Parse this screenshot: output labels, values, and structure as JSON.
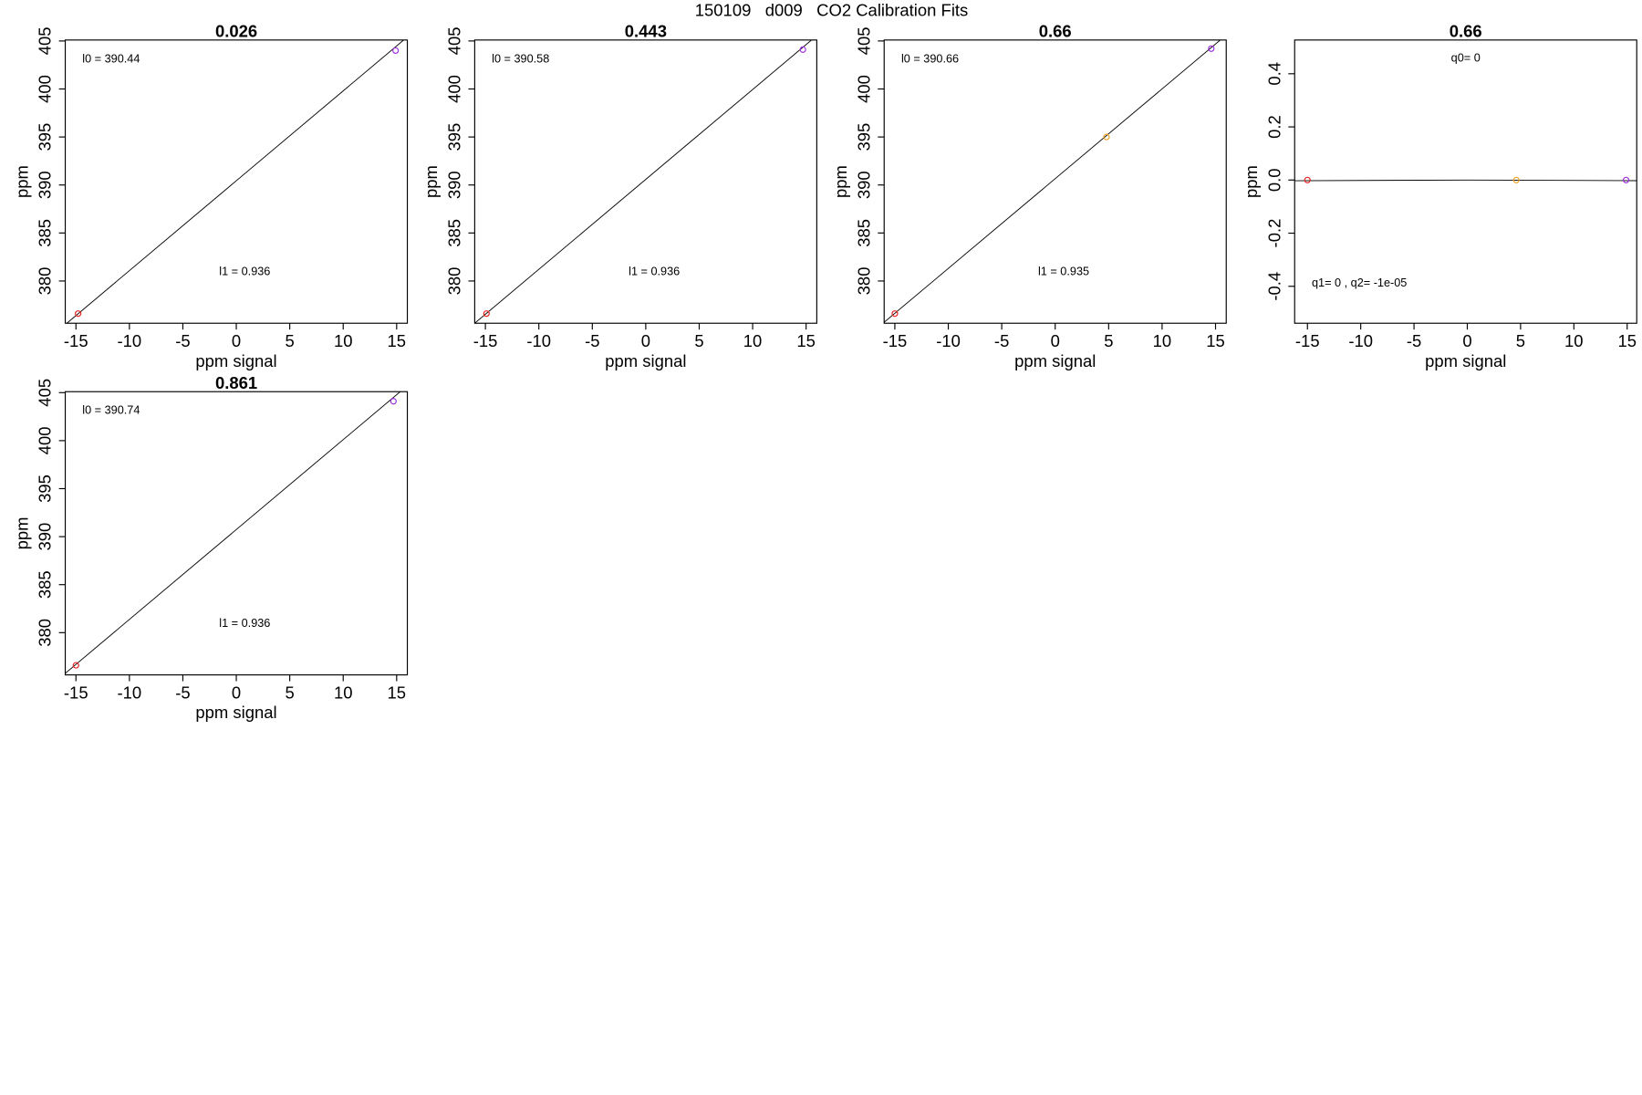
{
  "title": "150109   d009   CO2 Calibration Fits",
  "chart_data": [
    {
      "type": "scatter",
      "title": "0.026",
      "x_label": "ppm signal",
      "y_label": "ppm",
      "xlim": [
        -16,
        16
      ],
      "ylim": [
        375.6,
        405.1
      ],
      "xticks": [
        -15,
        -10,
        -5,
        0,
        5,
        10,
        15
      ],
      "yticks": [
        380,
        385,
        390,
        395,
        400,
        405
      ],
      "x": [
        -14.8,
        14.9
      ],
      "values": [
        376.6,
        404.0
      ],
      "colors": [
        "#e8201c",
        "#9a2ae0"
      ],
      "fit_line": {
        "x": [
          -16,
          16
        ],
        "values": [
          375.46,
          405.42
        ]
      },
      "annotations": [
        "l0 =  390.44",
        "l1 =  0.936"
      ]
    },
    {
      "type": "scatter",
      "title": "0.443",
      "x_label": "ppm signal",
      "y_label": "ppm",
      "xlim": [
        -16,
        16
      ],
      "ylim": [
        375.6,
        405.1
      ],
      "xticks": [
        -15,
        -10,
        -5,
        0,
        5,
        10,
        15
      ],
      "yticks": [
        380,
        385,
        390,
        395,
        400,
        405
      ],
      "x": [
        -14.9,
        14.7
      ],
      "values": [
        376.6,
        404.1
      ],
      "colors": [
        "#e8201c",
        "#9a2ae0"
      ],
      "fit_line": {
        "x": [
          -16,
          16
        ],
        "values": [
          375.6,
          405.56
        ]
      },
      "annotations": [
        "l0 =  390.58",
        "l1 =  0.936"
      ]
    },
    {
      "type": "scatter",
      "title": "0.66",
      "x_label": "ppm signal",
      "y_label": "ppm",
      "xlim": [
        -16,
        16
      ],
      "ylim": [
        375.6,
        405.1
      ],
      "xticks": [
        -15,
        -10,
        -5,
        0,
        5,
        10,
        15
      ],
      "yticks": [
        380,
        385,
        390,
        395,
        400,
        405
      ],
      "x": [
        -15,
        4.8,
        14.6
      ],
      "values": [
        376.6,
        395.0,
        404.2
      ],
      "colors": [
        "#e8201c",
        "#f0a020",
        "#9a2ae0"
      ],
      "fit_line": {
        "x": [
          -16,
          16
        ],
        "values": [
          375.7,
          405.62
        ]
      },
      "annotations": [
        "l0 =  390.66",
        "l1 =  0.935"
      ]
    },
    {
      "type": "scatter",
      "title": "0.66",
      "x_label": "ppm signal",
      "y_label": "ppm",
      "xlim": [
        -16.2,
        15.9
      ],
      "ylim": [
        -0.539,
        0.527
      ],
      "xticks": [
        -15,
        -10,
        -5,
        0,
        5,
        10,
        15
      ],
      "yticks": [
        -0.4,
        -0.2,
        {
          "value": 0,
          "label": "0.0"
        },
        0.2,
        0.4
      ],
      "x": [
        -15,
        4.6,
        14.9
      ],
      "values": [
        0,
        0,
        0
      ],
      "colors": [
        "#e8201c",
        "#f0a020",
        "#9a2ae0"
      ],
      "fit_line": {
        "x": [
          -16.2,
          0,
          15.9
        ],
        "values": [
          -0.0026,
          0,
          -0.0025
        ]
      },
      "annotations": [
        "q0= 0",
        "q1= 0 , q2= -1e-05"
      ]
    },
    {
      "type": "scatter",
      "title": "0.861",
      "x_label": "ppm signal",
      "y_label": "ppm",
      "xlim": [
        -16,
        16
      ],
      "ylim": [
        375.6,
        405.1
      ],
      "xticks": [
        -15,
        -10,
        -5,
        0,
        5,
        10,
        15
      ],
      "yticks": [
        380,
        385,
        390,
        395,
        400,
        405
      ],
      "x": [
        -15,
        14.7
      ],
      "values": [
        376.6,
        404.1
      ],
      "colors": [
        "#e8201c",
        "#9a2ae0"
      ],
      "fit_line": {
        "x": [
          -16,
          16
        ],
        "values": [
          375.76,
          405.72
        ]
      },
      "annotations": [
        "l0 =  390.74",
        "l1 =  0.936"
      ]
    }
  ]
}
